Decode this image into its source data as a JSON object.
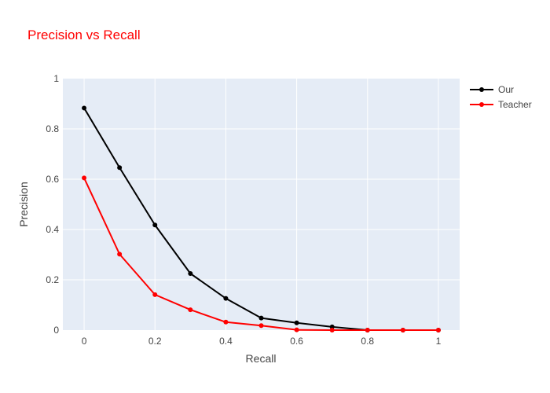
{
  "chart_data": {
    "type": "line",
    "title": "Precision vs Recall",
    "xlabel": "Recall",
    "ylabel": "Precision",
    "xlim": [
      -0.06,
      1.06
    ],
    "ylim": [
      0,
      1
    ],
    "xticks": [
      0,
      0.2,
      0.4,
      0.6,
      0.8,
      1
    ],
    "xtick_labels": [
      "0",
      "0.2",
      "0.4",
      "0.6",
      "0.8",
      "1"
    ],
    "yticks": [
      0,
      0.2,
      0.4,
      0.6,
      0.8,
      1
    ],
    "ytick_labels": [
      "0",
      "0.2",
      "0.4",
      "0.6",
      "0.8",
      "1"
    ],
    "x": [
      0,
      0.1,
      0.2,
      0.3,
      0.4,
      0.5,
      0.6,
      0.7,
      0.8,
      0.9,
      1.0
    ],
    "series": [
      {
        "name": "Our",
        "color": "#000000",
        "values": [
          0.883,
          0.646,
          0.418,
          0.225,
          0.126,
          0.048,
          0.029,
          0.013,
          0.0,
          0.0,
          0.0
        ]
      },
      {
        "name": "Teacher",
        "color": "#ff0000",
        "values": [
          0.605,
          0.302,
          0.141,
          0.081,
          0.032,
          0.018,
          0.001,
          0.0,
          0.0,
          0.0,
          0.0
        ]
      }
    ],
    "grid": true,
    "legend_position": "top-right",
    "title_color": "#ff0000",
    "plot_background": "#e5ecf6"
  }
}
